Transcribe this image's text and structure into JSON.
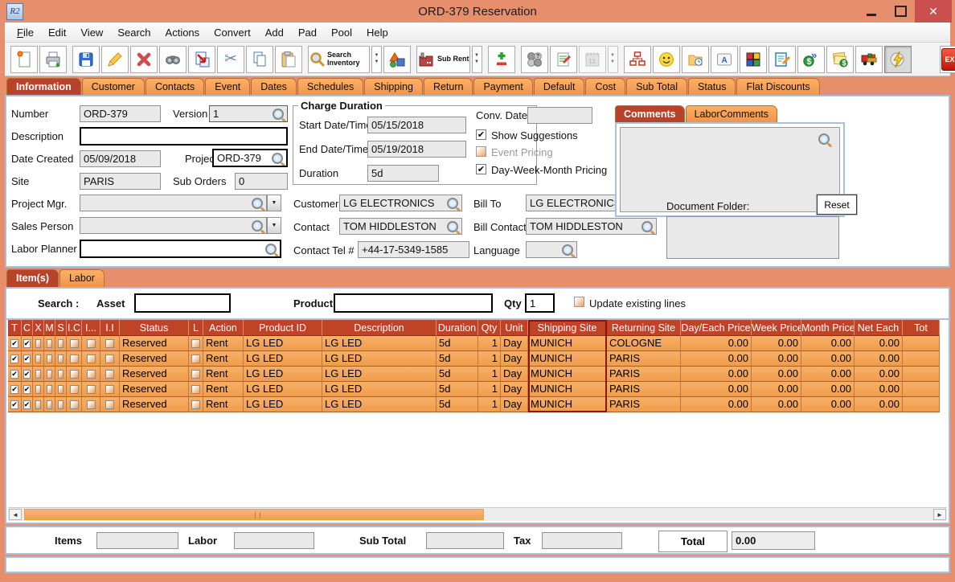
{
  "window": {
    "title": "ORD-379 Reservation",
    "app_icon_text": "R2",
    "controls": [
      "minimize",
      "maximize",
      "close"
    ]
  },
  "menu": {
    "items": [
      "File",
      "Edit",
      "View",
      "Search",
      "Actions",
      "Convert",
      "Add",
      "Pad",
      "Pool",
      "Help"
    ]
  },
  "toolbar": {
    "buttons": [
      "new-document",
      "print",
      "save",
      "edit",
      "delete",
      "find",
      "export-document",
      "cut",
      "copy",
      "paste",
      "search-inventory",
      "shapes",
      "sub-rent",
      "add-line",
      "group-lookup",
      "notepad",
      "calendar-disabled",
      "org-chart",
      "smiley",
      "folder-clock",
      "keyboard-key",
      "cube",
      "document-edit",
      "money-transfer",
      "price-notes",
      "truck",
      "lightning",
      "exit"
    ],
    "search_inventory_label": "Search Inventory",
    "sub_rent_label": "Sub Rent",
    "exit_label": "EXIT"
  },
  "tabs": {
    "items": [
      "Information",
      "Customer",
      "Contacts",
      "Event",
      "Dates",
      "Schedules",
      "Shipping",
      "Return",
      "Payment",
      "Default",
      "Cost",
      "Sub Total",
      "Status",
      "Flat Discounts"
    ],
    "active": "Information"
  },
  "info": {
    "number": {
      "label": "Number",
      "value": "ORD-379"
    },
    "version": {
      "label": "Version",
      "value": "1"
    },
    "description": {
      "label": "Description",
      "value": ""
    },
    "date_created": {
      "label": "Date Created",
      "value": "05/09/2018"
    },
    "project": {
      "label": "Project",
      "value": "ORD-379"
    },
    "site": {
      "label": "Site",
      "value": "PARIS"
    },
    "sub_orders": {
      "label": "Sub Orders",
      "value": "0"
    },
    "project_mgr": {
      "label": "Project Mgr.",
      "value": ""
    },
    "sales_person": {
      "label": "Sales Person",
      "value": ""
    },
    "labor_planner": {
      "label": "Labor Planner",
      "value": ""
    },
    "charge_duration": {
      "legend": "Charge Duration",
      "start": {
        "label": "Start Date/Time",
        "value": "05/15/2018"
      },
      "end": {
        "label": "End Date/Time",
        "value": "05/19/2018"
      },
      "duration": {
        "label": "Duration",
        "value": "5d"
      }
    },
    "conv_date": {
      "label": "Conv. Date",
      "value": ""
    },
    "show_suggestions": {
      "label": "Show Suggestions",
      "checked": true
    },
    "event_pricing": {
      "label": "Event Pricing",
      "checked": false
    },
    "day_week_month": {
      "label": "Day-Week-Month Pricing",
      "checked": true
    },
    "customer": {
      "label": "Customer",
      "value": "LG ELECTRONICS"
    },
    "contact": {
      "label": "Contact",
      "value": "TOM HIDDLESTON"
    },
    "contact_tel": {
      "label": "Contact Tel #",
      "value": "+44-17-5349-1585"
    },
    "bill_to": {
      "label": "Bill To",
      "value": "LG ELECTRONICS"
    },
    "bill_contact": {
      "label": "Bill Contact",
      "value": "TOM HIDDLESTON"
    },
    "language": {
      "label": "Language",
      "value": ""
    },
    "comments_tabs": {
      "items": [
        "Comments",
        "LaborComments"
      ],
      "active": "Comments"
    },
    "comments_value": "",
    "document_folder": {
      "label": "Document Folder:",
      "reset_label": "Reset",
      "value": ""
    }
  },
  "items_section": {
    "tabs": {
      "items": [
        "Item(s)",
        "Labor"
      ],
      "active": "Item(s)"
    },
    "search": {
      "label": "Search :",
      "asset_label": "Asset",
      "asset_value": "",
      "product_label": "Product",
      "product_value": "",
      "qty_label": "Qty",
      "qty_value": "1",
      "update_label": "Update existing lines",
      "update_checked": false
    },
    "table": {
      "columns": [
        "T",
        "C",
        "X",
        "M",
        "S",
        "I.C",
        "I...",
        "I.I",
        "Status",
        "L",
        "Action",
        "Product ID",
        "Description",
        "Duration",
        "Qty",
        "Unit",
        "Shipping Site",
        "Returning Site",
        "Day/Each Price",
        "Week Price",
        "Month Price",
        "Net Each",
        "Tot"
      ],
      "selected_column": "Shipping Site",
      "rows": [
        {
          "t": true,
          "c": true,
          "x": false,
          "m": false,
          "s": false,
          "ic": false,
          "idot": false,
          "ii": false,
          "status": "Reserved",
          "l": false,
          "action": "Rent",
          "product_id": "LG LED",
          "description": "LG LED",
          "duration": "5d",
          "qty": "1",
          "unit": "Day",
          "shipping_site": "MUNICH",
          "returning_site": "COLOGNE",
          "day_each_price": "0.00",
          "week_price": "0.00",
          "month_price": "0.00",
          "net_each": "0.00",
          "tot": ""
        },
        {
          "t": true,
          "c": true,
          "x": false,
          "m": false,
          "s": false,
          "ic": false,
          "idot": false,
          "ii": false,
          "status": "Reserved",
          "l": false,
          "action": "Rent",
          "product_id": "LG LED",
          "description": "LG LED",
          "duration": "5d",
          "qty": "1",
          "unit": "Day",
          "shipping_site": "MUNICH",
          "returning_site": "PARIS",
          "day_each_price": "0.00",
          "week_price": "0.00",
          "month_price": "0.00",
          "net_each": "0.00",
          "tot": ""
        },
        {
          "t": true,
          "c": true,
          "x": false,
          "m": false,
          "s": false,
          "ic": false,
          "idot": false,
          "ii": false,
          "status": "Reserved",
          "l": false,
          "action": "Rent",
          "product_id": "LG LED",
          "description": "LG LED",
          "duration": "5d",
          "qty": "1",
          "unit": "Day",
          "shipping_site": "MUNICH",
          "returning_site": "PARIS",
          "day_each_price": "0.00",
          "week_price": "0.00",
          "month_price": "0.00",
          "net_each": "0.00",
          "tot": ""
        },
        {
          "t": true,
          "c": true,
          "x": false,
          "m": false,
          "s": false,
          "ic": false,
          "idot": false,
          "ii": false,
          "status": "Reserved",
          "l": false,
          "action": "Rent",
          "product_id": "LG LED",
          "description": "LG LED",
          "duration": "5d",
          "qty": "1",
          "unit": "Day",
          "shipping_site": "MUNICH",
          "returning_site": "PARIS",
          "day_each_price": "0.00",
          "week_price": "0.00",
          "month_price": "0.00",
          "net_each": "0.00",
          "tot": ""
        },
        {
          "t": true,
          "c": true,
          "x": false,
          "m": false,
          "s": false,
          "ic": false,
          "idot": false,
          "ii": false,
          "status": "Reserved",
          "l": false,
          "action": "Rent",
          "product_id": "LG LED",
          "description": "LG LED",
          "duration": "5d",
          "qty": "1",
          "unit": "Day",
          "shipping_site": "MUNICH",
          "returning_site": "PARIS",
          "day_each_price": "0.00",
          "week_price": "0.00",
          "month_price": "0.00",
          "net_each": "0.00",
          "tot": ""
        }
      ]
    }
  },
  "totals": {
    "items_label": "Items",
    "items_value": "",
    "labor_label": "Labor",
    "labor_value": "",
    "sub_total_label": "Sub Total",
    "sub_total_value": "",
    "tax_label": "Tax",
    "tax_value": "",
    "total_label": "Total",
    "total_value": "0.00"
  },
  "colors": {
    "titlebar": "#E78F6C",
    "tab_orange": "#F69C4C",
    "active_tab": "#B7432B",
    "table_header": "#BE4327",
    "row_orange": "#F4A458",
    "selection_outline": "#8B150C",
    "close_button": "#C9504E",
    "exit_red": "#D0200C",
    "panel_border": "#A9C0D8"
  }
}
